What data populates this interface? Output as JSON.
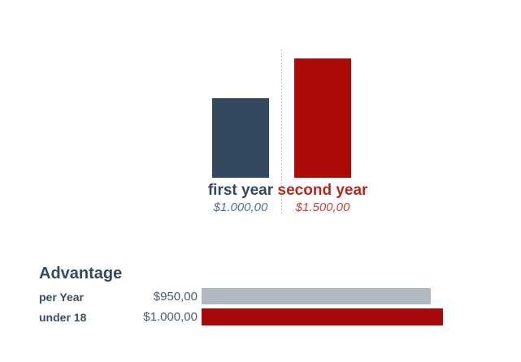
{
  "page": {
    "background": "#ffffff"
  },
  "chart_data": [
    {
      "type": "bar",
      "orientation": "vertical",
      "title": "",
      "categories": [
        "first year",
        "second year"
      ],
      "values": [
        1000,
        1500
      ],
      "value_labels": [
        "$1.000,00",
        "$1.500,00"
      ],
      "bar_colors": [
        "#34495e",
        "#ad0a0a"
      ],
      "category_label_colors": [
        "#34495e",
        "#b7271d"
      ],
      "value_label_colors": [
        "#54718e",
        "#c0463c"
      ],
      "ylim": [
        0,
        1500
      ],
      "grid": false,
      "legend": false,
      "separator": "dotted-vertical-line",
      "separator_color": "#c6c6c6"
    },
    {
      "type": "bar",
      "orientation": "horizontal",
      "title": "Advantage",
      "categories": [
        "per Year",
        "under 18"
      ],
      "values": [
        950,
        1000
      ],
      "value_labels": [
        "$950,00",
        "$1.000,00"
      ],
      "bar_colors": [
        "#b2b9c1",
        "#a60a0a"
      ],
      "title_color": "#34495e",
      "category_label_color": "#3d4d5c",
      "value_label_color": "#4c5b69",
      "xlim": [
        0,
        1000
      ],
      "grid": false,
      "legend": false
    }
  ]
}
